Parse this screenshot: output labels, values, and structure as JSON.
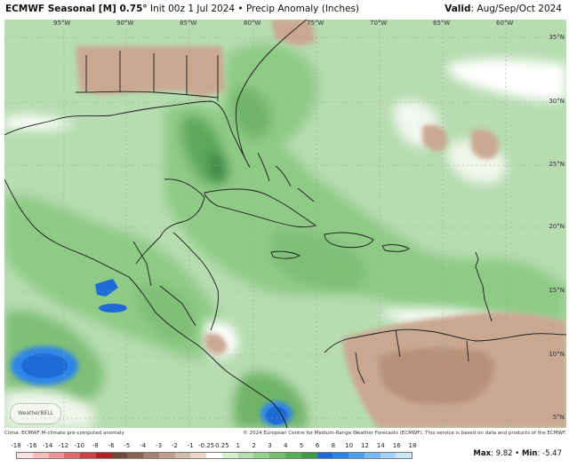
{
  "header": {
    "title_bold": "ECMWF Seasonal [M] 0.75°",
    "title_rest": " Init 00z 1 Jul 2024 • Precip Anomaly (Inches)",
    "valid_label": "Valid",
    "valid_value": ": Aug/Sep/Oct 2024"
  },
  "map": {
    "lon_labels": [
      "95°W",
      "90°W",
      "85°W",
      "80°W",
      "75°W",
      "70°W",
      "65°W",
      "60°W"
    ],
    "lat_labels": [
      "35°N",
      "30°N",
      "25°N",
      "20°N",
      "15°N",
      "10°N",
      "5°N"
    ],
    "watermark": "WeatherBELL"
  },
  "footer": {
    "left": "Clima: ECMWF M-climate pre-computed anomaly",
    "right": "© 2024 European Centre for Medium-Range Weather Forecasts (ECMWF). This service is based on data and products of the ECMWF."
  },
  "legend": {
    "ticks": [
      "-18",
      "-16",
      "-14",
      "-12",
      "-10",
      "-8",
      "-6",
      "-5",
      "-4",
      "-3",
      "-2",
      "-1",
      "-0.25",
      "0.25",
      "1",
      "2",
      "3",
      "4",
      "5",
      "6",
      "8",
      "10",
      "12",
      "14",
      "16",
      "18"
    ],
    "colors": [
      "#fde0e0",
      "#f8bcbc",
      "#ef9595",
      "#e06b6b",
      "#cc4444",
      "#b32222",
      "#6e4a3a",
      "#8a6450",
      "#a88170",
      "#c3a08d",
      "#d7bba9",
      "#e8d6c8",
      "#ffffff",
      "#d8f0d0",
      "#b6e0ae",
      "#95d08c",
      "#76bf70",
      "#5aae58",
      "#3e9a46",
      "#1f6bd6",
      "#2d84e8",
      "#4d9ff0",
      "#78baf5",
      "#a3d3f8",
      "#c9e6fb"
    ]
  },
  "stats": {
    "max_label": "Max",
    "max_value": ": 9.82",
    "sep": " • ",
    "min_label": "Min",
    "min_value": ": -5.47"
  }
}
